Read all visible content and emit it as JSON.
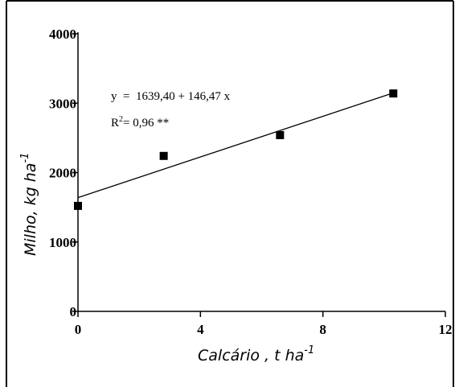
{
  "chart_data": {
    "type": "scatter",
    "x_ticks": [
      0,
      4,
      8,
      12
    ],
    "y_ticks": [
      0,
      1000,
      2000,
      3000,
      4000
    ],
    "xlim": [
      0,
      12
    ],
    "ylim": [
      0,
      4000
    ],
    "xlabel": "Calcário , t ha",
    "xlabel_sup": "-1",
    "ylabel": "Milho, kg ha",
    "ylabel_sup": "-1",
    "points": [
      {
        "x": 0.0,
        "y": 1520
      },
      {
        "x": 2.8,
        "y": 2240
      },
      {
        "x": 6.6,
        "y": 2540
      },
      {
        "x": 10.3,
        "y": 3140
      }
    ],
    "regression": {
      "intercept": 1639.4,
      "slope": 146.47,
      "x_start": 0,
      "x_end": 10.3
    },
    "equation": "y  =  1639,40 + 146,47 x",
    "r2_prefix": "R",
    "r2_sup": "2",
    "r2_value": "= 0,96 **",
    "marker_color": "#000000",
    "grid": false
  }
}
